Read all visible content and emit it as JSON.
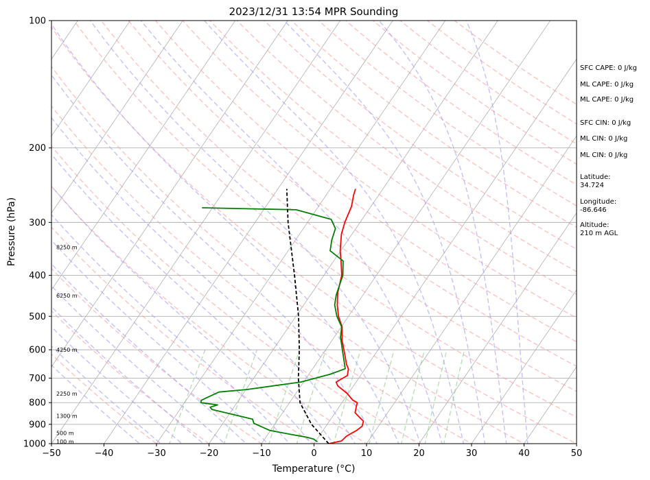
{
  "chart_data": {
    "type": "line",
    "title": "2023/12/31 13:54 MPR Sounding",
    "xlabel": "Temperature (°C)",
    "ylabel": "Pressure (hPa)",
    "xlim": [
      -50,
      50
    ],
    "ylim": [
      1000,
      100
    ],
    "y_scale": "log",
    "grid": true,
    "x_ticks": [
      -50,
      -40,
      -30,
      -20,
      -10,
      0,
      10,
      20,
      30,
      40,
      50
    ],
    "x_tick_labels": [
      "−50",
      "−40",
      "−30",
      "−20",
      "−10",
      "0",
      "10",
      "20",
      "30",
      "40",
      "50"
    ],
    "y_ticks": [
      1000,
      900,
      800,
      700,
      600,
      500,
      400,
      300,
      200,
      100
    ],
    "y_tick_labels": [
      "1000",
      "900",
      "800",
      "700",
      "600",
      "500",
      "400",
      "300",
      "200",
      "100"
    ],
    "series": [
      {
        "role": "temperature",
        "color": "#ff0000",
        "points": [
          [
            2.8,
            1000
          ],
          [
            4.9,
            985
          ],
          [
            5.2,
            960
          ],
          [
            5.8,
            945
          ],
          [
            6.4,
            930
          ],
          [
            6.9,
            910
          ],
          [
            6.5,
            885
          ],
          [
            4.8,
            860
          ],
          [
            3.8,
            845
          ],
          [
            3.3,
            820
          ],
          [
            2.9,
            800
          ],
          [
            1.8,
            790
          ],
          [
            -0.3,
            760
          ],
          [
            -3.0,
            730
          ],
          [
            -3.8,
            715
          ],
          [
            -2.5,
            690
          ],
          [
            -3.2,
            665
          ],
          [
            -4.1,
            650
          ],
          [
            -6.5,
            600
          ],
          [
            -8.1,
            570
          ],
          [
            -9.8,
            530
          ],
          [
            -11.9,
            500
          ],
          [
            -13.6,
            470
          ],
          [
            -15.1,
            440
          ],
          [
            -16.6,
            400
          ],
          [
            -18.6,
            370
          ],
          [
            -20.1,
            350
          ],
          [
            -22.0,
            320
          ],
          [
            -22.9,
            300
          ],
          [
            -23.7,
            275
          ],
          [
            -24.8,
            258
          ],
          [
            -25.2,
            250
          ]
        ]
      },
      {
        "role": "dewpoint",
        "color": "#008000",
        "points": [
          [
            0.4,
            990
          ],
          [
            -0.7,
            975
          ],
          [
            -2.3,
            965
          ],
          [
            -5.8,
            950
          ],
          [
            -10.2,
            930
          ],
          [
            -14.1,
            895
          ],
          [
            -14.9,
            875
          ],
          [
            -23.9,
            830
          ],
          [
            -24.5,
            820
          ],
          [
            -23.4,
            810
          ],
          [
            -26.9,
            800
          ],
          [
            -27.1,
            790
          ],
          [
            -26.5,
            780
          ],
          [
            -24.8,
            755
          ],
          [
            -19.9,
            745
          ],
          [
            -10.5,
            715
          ],
          [
            -5.9,
            685
          ],
          [
            -3.8,
            665
          ],
          [
            -6.8,
            600
          ],
          [
            -8.8,
            560
          ],
          [
            -9.9,
            530
          ],
          [
            -12.2,
            500
          ],
          [
            -14.1,
            470
          ],
          [
            -15.1,
            445
          ],
          [
            -16.4,
            400
          ],
          [
            -18.2,
            370
          ],
          [
            -22.0,
            350
          ],
          [
            -23.1,
            330
          ],
          [
            -23.9,
            310
          ],
          [
            -25.9,
            295
          ],
          [
            -33.8,
            280
          ],
          [
            -52.0,
            277
          ]
        ]
      },
      {
        "role": "parcel-profile",
        "color": "#000000",
        "style": "dashed",
        "points": [
          [
            2.8,
            1000
          ],
          [
            -3.0,
            900
          ],
          [
            -8.0,
            800
          ],
          [
            -11.5,
            700
          ],
          [
            -15.0,
            600
          ],
          [
            -19.5,
            500
          ],
          [
            -25.6,
            400
          ],
          [
            -33.7,
            300
          ],
          [
            -38.3,
            250
          ]
        ]
      }
    ],
    "height_labels": [
      {
        "text": "100 m",
        "p": 988
      },
      {
        "text": "500 m",
        "p": 943
      },
      {
        "text": "1300 m",
        "p": 860
      },
      {
        "text": "2250 m",
        "p": 762
      },
      {
        "text": "4250 m",
        "p": 600
      },
      {
        "text": "6250 m",
        "p": 447
      },
      {
        "text": "8250 m",
        "p": 343
      }
    ],
    "indices": [
      "SFC CAPE: 0 J/kg",
      "ML CAPE: 0 J/kg",
      "ML CAPE: 0 J/kg",
      "SFC CIN: 0 J/kg",
      "ML CIN: 0 J/kg",
      "ML CIN: 0 J/kg"
    ],
    "location": {
      "latitude_label": "Latitude:",
      "latitude": "34.724",
      "longitude_label": "Longitude:",
      "longitude": "-86.646",
      "altitude_label": "Altitude:",
      "altitude": "210 m AGL"
    },
    "background_lines": {
      "isotherm_color": "#b0b0b0",
      "dry_adiabat_color": "#ff9999",
      "moist_adiabat_color": "#9999ff",
      "mixing_ratio_color": "#88cc88"
    }
  }
}
